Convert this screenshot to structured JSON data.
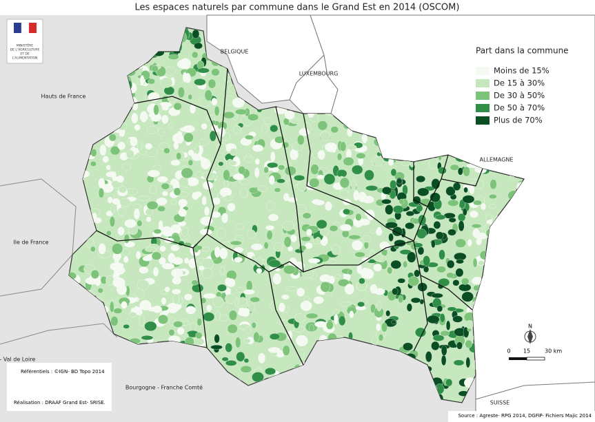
{
  "title": "Les espaces naturels par commune dans le Grand Est en 2014 (OSCOM)",
  "legend": {
    "title": "Part dans la commune",
    "items": [
      {
        "label": "Moins de 15%",
        "color": "#f4faf1"
      },
      {
        "label": "De 15 à 30%",
        "color": "#c7e8bf"
      },
      {
        "label": "De 30 à 50%",
        "color": "#7dc47a"
      },
      {
        "label": "De 50 à 70%",
        "color": "#2f8f47"
      },
      {
        "label": "Plus de 70%",
        "color": "#0a4f24"
      }
    ]
  },
  "regions": [
    {
      "label": "BELGIQUE"
    },
    {
      "label": "LUXEMBOURG"
    },
    {
      "label": "ALLEMAGNE"
    },
    {
      "label": "SUISSE"
    },
    {
      "label": "Hauts de France"
    },
    {
      "label": "Ile de France"
    },
    {
      "label": "re - Val de Loire"
    },
    {
      "label": "Bourgogne - Franche Comté"
    }
  ],
  "logo": [
    "MINISTÈRE",
    "DE L'AGRICULTURE",
    "ET DE",
    "L'ALIMENTATION"
  ],
  "credits": [
    "Référentiels : ©IGN- BD Topo 2014",
    "Réalisation : DRAAF Grand Est- SRISE."
  ],
  "source": "Source : Agreste- RPG 2014, DGFiP- Fichiers Majic 2014",
  "north": "N",
  "scale": [
    "0",
    "15",
    "30 km"
  ]
}
